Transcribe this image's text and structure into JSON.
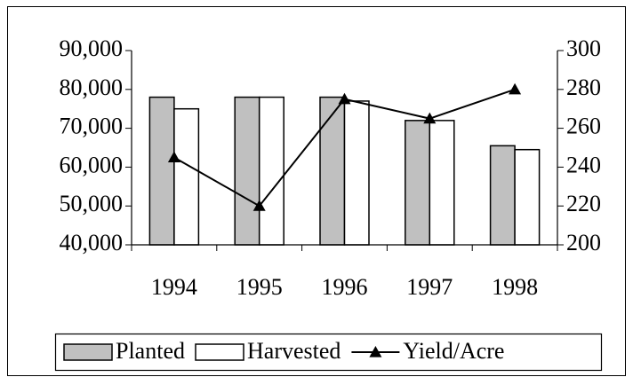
{
  "chart_data": {
    "type": "bar-line",
    "categories": [
      "1994",
      "1995",
      "1996",
      "1997",
      "1998"
    ],
    "series": [
      {
        "name": "Planted",
        "type": "bar",
        "color": "#c0c0c0",
        "values": [
          78000,
          78000,
          78000,
          72000,
          65500
        ]
      },
      {
        "name": "Harvested",
        "type": "bar",
        "color": "#ffffff",
        "values": [
          75000,
          78000,
          77000,
          72000,
          64500
        ]
      },
      {
        "name": "Yield/Acre",
        "type": "line",
        "axis": "y2",
        "color": "#000000",
        "marker": "triangle",
        "values": [
          245,
          220,
          275,
          265,
          280
        ]
      }
    ],
    "ylim": [
      40000,
      90000
    ],
    "yticks": [
      {
        "value": 40000,
        "label": "40,000"
      },
      {
        "value": 50000,
        "label": "50,000"
      },
      {
        "value": 60000,
        "label": "60,000"
      },
      {
        "value": 70000,
        "label": "70,000"
      },
      {
        "value": 80000,
        "label": "80,000"
      },
      {
        "value": 90000,
        "label": "90,000"
      }
    ],
    "y2lim": [
      200,
      300
    ],
    "y2ticks": [
      200,
      220,
      240,
      260,
      280,
      300
    ],
    "grid": false,
    "legend": "bottom"
  }
}
